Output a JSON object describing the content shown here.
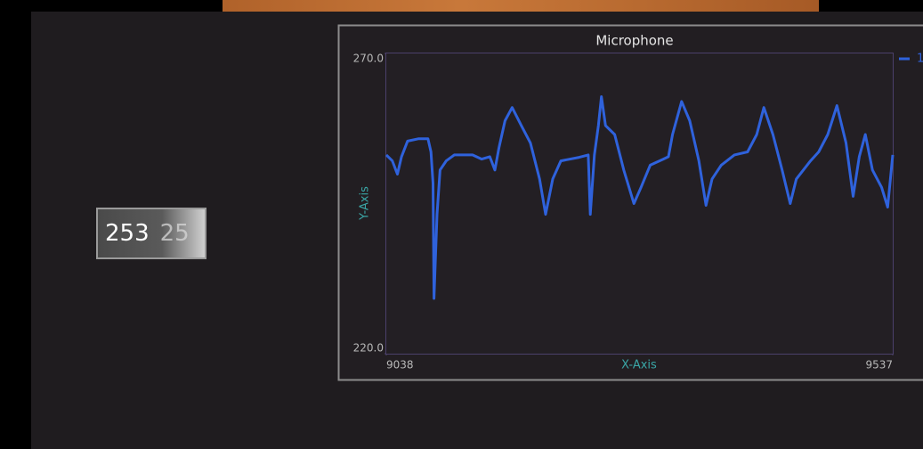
{
  "display": {
    "values": [
      "253",
      "25"
    ]
  },
  "chart_data": {
    "type": "line",
    "title": "Microphone",
    "x_label": "X-Axis",
    "y_label": "Y-Axis",
    "xlim": [
      9038,
      9537
    ],
    "xticks": [
      9038,
      9537
    ],
    "ylim": [
      220,
      270
    ],
    "yticks": [
      {
        "value": 270,
        "label": "270.0"
      },
      {
        "value": 220,
        "label": "220.0"
      }
    ],
    "x": [
      9038,
      9044,
      9049,
      9053,
      9059,
      9070,
      9079,
      9082,
      9084,
      9085,
      9088,
      9091,
      9097,
      9105,
      9123,
      9132,
      9140,
      9145,
      9149,
      9155,
      9162,
      9171,
      9180,
      9189,
      9195,
      9202,
      9210,
      9228,
      9237,
      9239,
      9243,
      9247,
      9250,
      9254,
      9263,
      9272,
      9282,
      9289,
      9298,
      9311,
      9316,
      9320,
      9329,
      9337,
      9346,
      9353,
      9359,
      9368,
      9381,
      9394,
      9403,
      9410,
      9419,
      9428,
      9436,
      9442,
      9456,
      9464,
      9473,
      9482,
      9491,
      9498,
      9504,
      9510,
      9517,
      9526,
      9532,
      9537
    ],
    "series": [
      {
        "name": "1",
        "color": "#2f62dc",
        "values": [
          253.1,
          252.1,
          249.9,
          252.8,
          255.4,
          255.8,
          255.8,
          253.6,
          248.4,
          229.2,
          243.2,
          250.6,
          252.1,
          253.1,
          253.1,
          252.4,
          252.8,
          250.6,
          254.3,
          258.8,
          261.0,
          258.0,
          255.1,
          249.1,
          243.2,
          249.1,
          252.1,
          252.7,
          253.1,
          243.2,
          253.1,
          258.0,
          262.8,
          258.0,
          256.5,
          250.6,
          245.0,
          247.7,
          251.4,
          252.4,
          252.8,
          256.5,
          262.0,
          258.8,
          252.1,
          244.7,
          249.1,
          251.4,
          253.1,
          253.6,
          256.5,
          261.0,
          256.5,
          250.6,
          245.0,
          249.1,
          252.1,
          253.6,
          256.5,
          261.3,
          255.1,
          246.2,
          252.8,
          256.5,
          250.6,
          247.7,
          244.4,
          253.1
        ]
      }
    ]
  }
}
